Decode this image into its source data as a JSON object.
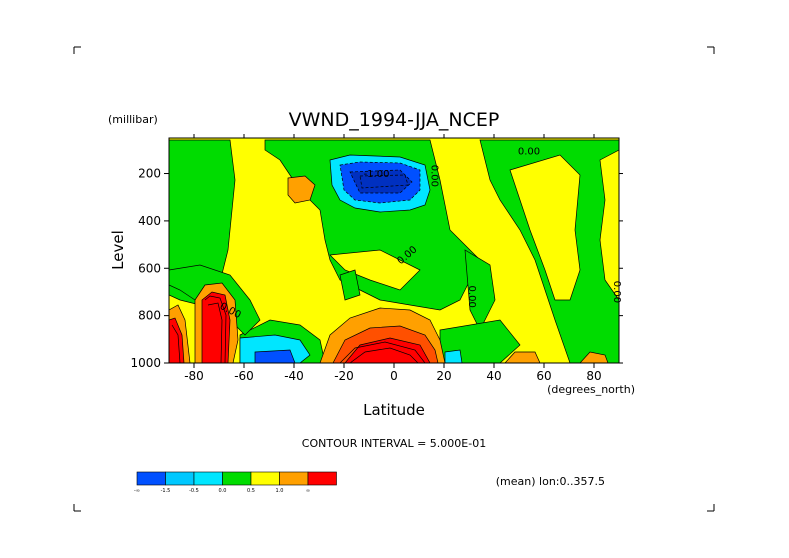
{
  "chart_data": {
    "type": "heatmap",
    "title": "VWND_1994-JJA_NCEP",
    "xlabel": "Latitude",
    "ylabel": "Level",
    "y_units": "(millibar)",
    "x_units": "(degrees_north)",
    "xlim": [
      -90,
      90
    ],
    "ylim": [
      1000,
      50
    ],
    "x_ticks": [
      "-80",
      "-60",
      "-40",
      "-20",
      "0",
      "20",
      "40",
      "60",
      "80"
    ],
    "x_tick_values": [
      -80,
      -60,
      -40,
      -20,
      0,
      20,
      40,
      60,
      80
    ],
    "y_ticks": [
      "200",
      "400",
      "600",
      "800",
      "1000"
    ],
    "y_tick_values": [
      200,
      400,
      600,
      800,
      1000
    ],
    "contour_interval_text": "CONTOUR INTERVAL = 5.000E-01",
    "subtitle_right": "(mean) lon:0..357.5",
    "contour_labels": [
      {
        "text": "0.00",
        "x": -66,
        "y": 790,
        "rotate": 28
      },
      {
        "text": "0.00",
        "x": 6,
        "y": 555,
        "rotate": -40
      },
      {
        "text": "-1.00",
        "x": -7,
        "y": 215,
        "rotate": 0
      },
      {
        "text": "0.00",
        "x": 15,
        "y": 210,
        "rotate": 90
      },
      {
        "text": "0.00",
        "x": 54,
        "y": 120,
        "rotate": 0
      },
      {
        "text": "0.00",
        "x": 30,
        "y": 720,
        "rotate": 90
      },
      {
        "text": "0.00",
        "x": 88,
        "y": 700,
        "rotate": 90
      }
    ],
    "colorbar": {
      "colors": [
        "#0050ff",
        "#00c8ff",
        "#00e6ff",
        "#00dc00",
        "#ffff00",
        "#ffa000",
        "#ff0000"
      ],
      "labels": [
        "-∞",
        "-1.5",
        "-0.5",
        "0.0",
        "0.5",
        "1.0",
        "∞"
      ]
    },
    "regions": [
      {
        "level": "pos_0_5",
        "color": "#ffff00",
        "desc": "background yellow"
      },
      {
        "level": "neg",
        "color": "#00dc00",
        "desc": "green band upper"
      },
      {
        "level": "strong_neg",
        "color": "#0050ff",
        "desc": "jet core near 0N 200mb"
      },
      {
        "level": "strong_pos",
        "color": "#ff0000",
        "desc": "near-surface southern max"
      }
    ]
  }
}
